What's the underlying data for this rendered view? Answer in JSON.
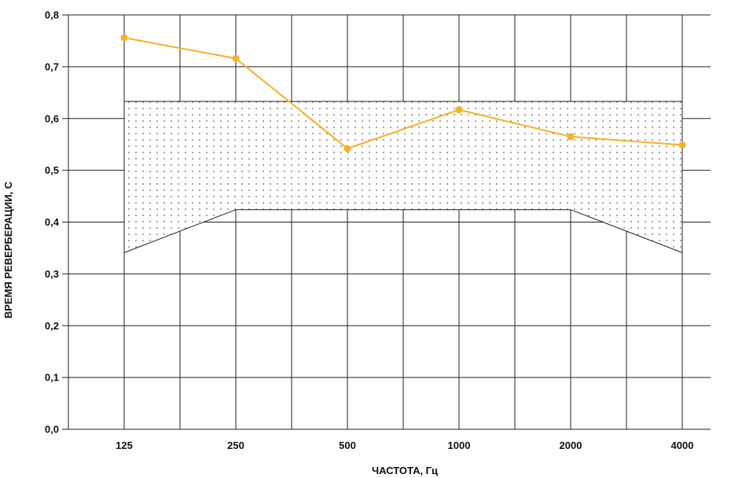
{
  "chart_data": {
    "type": "line",
    "title": "",
    "xlabel": "ЧАСТОТА, Гц",
    "ylabel": "ВРЕМЯ РЕВЕРБЕРАЦИИ, С",
    "categories": [
      "125",
      "250",
      "500",
      "1000",
      "2000",
      "4000"
    ],
    "ylim": [
      0,
      0.8
    ],
    "y_ticks": [
      "0,0",
      "0,1",
      "0,2",
      "0,3",
      "0,4",
      "0,5",
      "0,6",
      "0,7",
      "0,8"
    ],
    "grid": true,
    "legend": "none",
    "series": [
      {
        "values": [
          0.756,
          0.716,
          0.542,
          0.617,
          0.565,
          0.549
        ],
        "color": "#F5B223"
      }
    ],
    "tolerance_band": {
      "upper": [
        0.633,
        0.633,
        0.633,
        0.633,
        0.633,
        0.633
      ],
      "lower": [
        0.341,
        0.424,
        0.424,
        0.424,
        0.424,
        0.341
      ],
      "fill": "dotted"
    }
  }
}
